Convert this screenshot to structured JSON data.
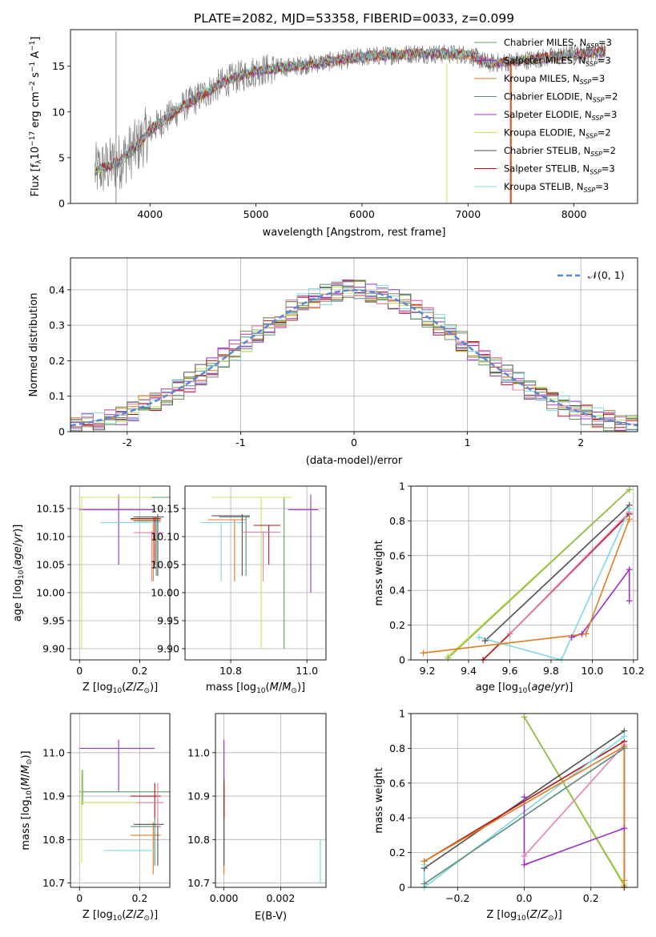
{
  "figure": {
    "title": "PLATE=2082, MJD=53358, FIBERID=0033, z=0.099"
  },
  "colors": {
    "series": [
      "#5f9e5f",
      "#9b30c8",
      "#e07b20",
      "#5f8a7a",
      "#9b30c8",
      "#c8e65a",
      "#505050",
      "#b41414",
      "#7ed8e0"
    ],
    "grid": "#b0b0b0",
    "normal_curve": "#5b86d6",
    "extra_lines": [
      "#e77fb4",
      "#7a8b5a"
    ]
  },
  "chart_data": [
    {
      "id": "spectrum",
      "type": "line",
      "xlabel": "wavelength [Angstrom, rest frame]",
      "ylabel": "Flux [f",
      "ylabel_parts": [
        "Flux [f",
        "λ",
        "10",
        "−17",
        " erg cm",
        "−2",
        " s",
        "−1",
        " A",
        "−1",
        "]"
      ],
      "xlim": [
        3250,
        8600
      ],
      "ylim": [
        0,
        19
      ],
      "xticks": [
        4000,
        5000,
        6000,
        7000,
        8000
      ],
      "yticks": [
        0,
        5,
        10,
        15
      ],
      "grid": false,
      "legend_position": "right",
      "legend": [
        {
          "base": "Chabrier MILES, N",
          "sub": "SSP",
          "tail": "=3",
          "color": "#5f9e5f"
        },
        {
          "base": "Salpeter MILES, N",
          "sub": "SSP",
          "tail": "=3",
          "color": "#9b30c8"
        },
        {
          "base": "Kroupa MILES, N",
          "sub": "SSP",
          "tail": "=3",
          "color": "#e07b20"
        },
        {
          "base": "Chabrier ELODIE, N",
          "sub": "SSP",
          "tail": "=2",
          "color": "#5f8a7a"
        },
        {
          "base": "Salpeter ELODIE, N",
          "sub": "SSP",
          "tail": "=3",
          "color": "#9b30c8"
        },
        {
          "base": "Kroupa ELODIE, N",
          "sub": "SSP",
          "tail": "=2",
          "color": "#c8e65a"
        },
        {
          "base": "Chabrier STELIB, N",
          "sub": "SSP",
          "tail": "=2",
          "color": "#505050"
        },
        {
          "base": "Salpeter STELIB, N",
          "sub": "SSP",
          "tail": "=3",
          "color": "#b41414"
        },
        {
          "base": "Kroupa STELIB, N",
          "sub": "SSP",
          "tail": "=3",
          "color": "#7ed8e0"
        }
      ],
      "continuum_points": [
        [
          3480,
          3.5
        ],
        [
          3700,
          4.5
        ],
        [
          3900,
          6.5
        ],
        [
          4000,
          8.0
        ],
        [
          4300,
          10.5
        ],
        [
          4700,
          13.3
        ],
        [
          5000,
          14.5
        ],
        [
          5500,
          15.2
        ],
        [
          6000,
          16.0
        ],
        [
          6500,
          16.4
        ],
        [
          7000,
          16.3
        ],
        [
          7200,
          15.3
        ],
        [
          7500,
          15.6
        ],
        [
          8000,
          16.3
        ],
        [
          8300,
          16.6
        ]
      ],
      "x_start": 3480,
      "x_end": 8300,
      "spikes": [
        {
          "x": 3680,
          "y": [
            0,
            18.8
          ],
          "color": "#808080"
        },
        {
          "x": 6800,
          "y": [
            0,
            15.3
          ],
          "color": "#c8e65a"
        },
        {
          "x": 7400,
          "y": [
            0,
            15.6
          ],
          "color": "#b41414"
        },
        {
          "x": 7410,
          "y": [
            0,
            15.0
          ],
          "color": "#e07b20"
        }
      ]
    },
    {
      "id": "residuals",
      "type": "area",
      "xlabel": "(data-model)/error",
      "ylabel": "Normed distribution",
      "xlim": [
        -2.5,
        2.5
      ],
      "ylim": [
        0,
        0.49
      ],
      "xticks": [
        -2,
        -1,
        0,
        1,
        2
      ],
      "yticks": [
        0.0,
        0.1,
        0.2,
        0.3,
        0.4
      ],
      "grid": true,
      "legend_position": "top-right",
      "legend": [
        {
          "label": "𝒩(0, 1)",
          "color": "#5b86d6"
        }
      ],
      "bin_width": 0.1
    },
    {
      "id": "age_vs_Z",
      "type": "scatter",
      "xlabel": "Z [log10(Z/Z⊙)]",
      "ylabel": "age  [log10(age/yr)]",
      "xlim": [
        -0.03,
        0.3
      ],
      "ylim": [
        9.88,
        10.19
      ],
      "xticks": [
        0.0,
        0.2
      ],
      "yticks": [
        9.9,
        9.95,
        10.0,
        10.05,
        10.1,
        10.15
      ],
      "ytick_labels": [
        "9.90",
        "9.95",
        "10.00",
        "10.05",
        "10.10",
        "10.15"
      ],
      "grid": true,
      "points": [
        {
          "x": 0.21,
          "y": 10.17,
          "xerr": [
            0.0,
            0.3
          ],
          "yerr": [
            10.17,
            10.17
          ],
          "color": "#5f9e5f"
        },
        {
          "x": 0.13,
          "y": 10.148,
          "xerr": [
            0.0,
            0.25
          ],
          "yerr": [
            10.05,
            10.175
          ],
          "color": "#9b30c8"
        },
        {
          "x": 0.245,
          "y": 10.13,
          "xerr": [
            0.17,
            0.27
          ],
          "yerr": [
            10.02,
            10.135
          ],
          "color": "#e07b20"
        },
        {
          "x": 0.255,
          "y": 10.128,
          "xerr": [
            0.18,
            0.27
          ],
          "yerr": [
            10.03,
            10.135
          ],
          "color": "#5f8a7a"
        },
        {
          "x": 0.15,
          "y": 10.125,
          "xerr": [
            0.07,
            0.27
          ],
          "yerr": [
            10.125,
            10.125
          ],
          "color": "#7ed8e0"
        },
        {
          "x": 0.007,
          "y": 10.17,
          "xerr": [
            0.0,
            0.24
          ],
          "yerr": [
            9.9,
            10.17
          ],
          "color": "#c8e65a"
        },
        {
          "x": 0.26,
          "y": 10.135,
          "xerr": [
            0.18,
            0.28
          ],
          "yerr": [
            10.03,
            10.14
          ],
          "color": "#505050"
        },
        {
          "x": 0.25,
          "y": 10.132,
          "xerr": [
            0.17,
            0.27
          ],
          "yerr": [
            10.05,
            10.135
          ],
          "color": "#b41414"
        },
        {
          "x": 0.24,
          "y": 10.107,
          "xerr": [
            0.18,
            0.28
          ],
          "yerr": [
            10.02,
            10.11
          ],
          "color": "#e77fb4"
        }
      ]
    },
    {
      "id": "age_vs_mass",
      "type": "scatter",
      "xlabel": "mass [log10(M/M⊙)]",
      "ylabel": "",
      "xlim": [
        10.68,
        11.05
      ],
      "ylim": [
        9.88,
        10.19
      ],
      "xticks": [
        10.8,
        11.0
      ],
      "xtick_labels": [
        "10.8",
        "11.0"
      ],
      "yticks": [
        9.9,
        9.95,
        10.0,
        10.05,
        10.1,
        10.15
      ],
      "ytick_labels": [
        "9.90",
        "9.95",
        "10.00",
        "10.05",
        "10.10",
        "10.15"
      ],
      "grid": true,
      "points": [
        {
          "x": 10.94,
          "y": 10.17,
          "xerr": [
            10.88,
            10.96
          ],
          "yerr": [
            9.9,
            10.17
          ],
          "color": "#5f9e5f"
        },
        {
          "x": 11.01,
          "y": 10.148,
          "xerr": [
            10.95,
            11.03
          ],
          "yerr": [
            10.0,
            10.175
          ],
          "color": "#9b30c8"
        },
        {
          "x": 10.81,
          "y": 10.13,
          "xerr": [
            10.74,
            10.84
          ],
          "yerr": [
            10.02,
            10.13
          ],
          "color": "#e07b20"
        },
        {
          "x": 10.84,
          "y": 10.135,
          "xerr": [
            10.77,
            10.85
          ],
          "yerr": [
            10.03,
            10.135
          ],
          "color": "#5f8a7a"
        },
        {
          "x": 10.775,
          "y": 10.125,
          "xerr": [
            10.72,
            10.84
          ],
          "yerr": [
            10.02,
            10.125
          ],
          "color": "#7ed8e0"
        },
        {
          "x": 10.88,
          "y": 10.17,
          "xerr": [
            10.75,
            10.96
          ],
          "yerr": [
            9.9,
            10.17
          ],
          "color": "#c8e65a"
        },
        {
          "x": 10.83,
          "y": 10.137,
          "xerr": [
            10.75,
            10.85
          ],
          "yerr": [
            10.03,
            10.14
          ],
          "color": "#505050"
        },
        {
          "x": 10.9,
          "y": 10.12,
          "xerr": [
            10.86,
            10.93
          ],
          "yerr": [
            10.05,
            10.12
          ],
          "color": "#b41414"
        },
        {
          "x": 10.885,
          "y": 10.108,
          "xerr": [
            10.83,
            10.93
          ],
          "yerr": [
            10.02,
            10.11
          ],
          "color": "#e77fb4"
        }
      ]
    },
    {
      "id": "massweight_vs_age",
      "type": "line",
      "xlabel": "age  [log10(age/yr)]",
      "ylabel": "mass weight",
      "xlim": [
        9.12,
        10.22
      ],
      "ylim": [
        0,
        1.0
      ],
      "xticks": [
        9.2,
        9.4,
        9.6,
        9.8,
        10.0,
        10.2
      ],
      "xtick_labels": [
        "9.2",
        "9.4",
        "9.6",
        "9.8",
        "10.0",
        "10.2"
      ],
      "yticks": [
        0.0,
        0.2,
        0.4,
        0.6,
        0.8,
        1.0
      ],
      "grid": true,
      "series": [
        {
          "color": "#c8e65a",
          "x": [
            9.3,
            10.18
          ],
          "y": [
            0.02,
            0.98
          ]
        },
        {
          "color": "#8fb84a",
          "x": [
            9.3,
            10.18
          ],
          "y": [
            0.01,
            0.98
          ]
        },
        {
          "color": "#505050",
          "x": [
            9.48,
            10.18
          ],
          "y": [
            0.11,
            0.89
          ]
        },
        {
          "color": "#b41414",
          "x": [
            9.47,
            9.6,
            10.18
          ],
          "y": [
            0.0,
            0.15,
            0.84
          ]
        },
        {
          "color": "#e77fb4",
          "x": [
            9.6,
            10.18
          ],
          "y": [
            0.15,
            0.85
          ]
        },
        {
          "color": "#7ed8e0",
          "x": [
            9.45,
            9.85,
            10.18
          ],
          "y": [
            0.13,
            0.0,
            0.87
          ]
        },
        {
          "color": "#9b30c8",
          "x": [
            9.9,
            9.95,
            10.18,
            10.18
          ],
          "y": [
            0.13,
            0.15,
            0.52,
            0.34
          ]
        },
        {
          "color": "#e07b20",
          "x": [
            9.18,
            9.97,
            10.18
          ],
          "y": [
            0.04,
            0.15,
            0.81
          ]
        }
      ]
    },
    {
      "id": "mass_vs_Z",
      "type": "scatter",
      "xlabel": "Z [log10(Z/Z⊙)]",
      "ylabel": "mass [log10(M/M⊙)]",
      "xlim": [
        -0.03,
        0.3
      ],
      "ylim": [
        10.69,
        11.09
      ],
      "xticks": [
        0.0,
        0.2
      ],
      "yticks": [
        10.7,
        10.8,
        10.9,
        11.0
      ],
      "ytick_labels": [
        "10.7",
        "10.8",
        "10.9",
        "11.0"
      ],
      "grid": true,
      "points": [
        {
          "x": 0.01,
          "y": 10.91,
          "xerr": [
            0.0,
            0.3
          ],
          "yerr": [
            10.88,
            10.96
          ],
          "color": "#5f9e5f"
        },
        {
          "x": 0.13,
          "y": 11.01,
          "xerr": [
            0.0,
            0.25
          ],
          "yerr": [
            10.91,
            11.03
          ],
          "color": "#9b30c8"
        },
        {
          "x": 0.245,
          "y": 10.81,
          "xerr": [
            0.17,
            0.27
          ],
          "yerr": [
            10.72,
            10.84
          ],
          "color": "#e07b20"
        },
        {
          "x": 0.25,
          "y": 10.83,
          "xerr": [
            0.17,
            0.27
          ],
          "yerr": [
            10.74,
            10.85
          ],
          "color": "#5f8a7a"
        },
        {
          "x": 0.15,
          "y": 10.775,
          "xerr": [
            0.08,
            0.25
          ],
          "yerr": [
            10.775,
            10.775
          ],
          "color": "#7ed8e0"
        },
        {
          "x": 0.007,
          "y": 10.885,
          "xerr": [
            0.0,
            0.24
          ],
          "yerr": [
            10.745,
            10.96
          ],
          "color": "#c8e65a"
        },
        {
          "x": 0.26,
          "y": 10.835,
          "xerr": [
            0.18,
            0.28
          ],
          "yerr": [
            10.74,
            10.85
          ],
          "color": "#505050"
        },
        {
          "x": 0.25,
          "y": 10.9,
          "xerr": [
            0.17,
            0.27
          ],
          "yerr": [
            10.85,
            10.93
          ],
          "color": "#b41414"
        },
        {
          "x": 0.26,
          "y": 10.885,
          "xerr": [
            0.19,
            0.28
          ],
          "yerr": [
            10.83,
            10.93
          ],
          "color": "#e77fb4"
        }
      ]
    },
    {
      "id": "mass_vs_ebv",
      "type": "scatter",
      "xlabel": "E(B-V)",
      "ylabel": "",
      "xlim": [
        -0.0003,
        0.0036
      ],
      "ylim": [
        10.69,
        11.09
      ],
      "xticks": [
        0.0,
        0.002
      ],
      "xtick_labels": [
        "0.000",
        "0.002"
      ],
      "yticks": [
        10.7,
        10.8,
        10.9,
        11.0
      ],
      "ytick_labels": [
        "10.7",
        "10.8",
        "10.9",
        "11.0"
      ],
      "grid": true,
      "points": [
        {
          "x": 0.0,
          "y": 11.01,
          "xerr": [
            0.0,
            0.0
          ],
          "yerr": [
            10.93,
            11.03
          ],
          "color": "#9b30c8"
        },
        {
          "x": 0.0,
          "y": 10.87,
          "xerr": [
            0.0,
            0.0
          ],
          "yerr": [
            10.72,
            10.93
          ],
          "color": "#e07b20"
        },
        {
          "x": 0.0,
          "y": 10.85,
          "xerr": [
            0.0,
            0.0
          ],
          "yerr": [
            10.74,
            10.94
          ],
          "color": "#505050"
        },
        {
          "x": 0.0,
          "y": 10.91,
          "xerr": [
            0.0,
            0.0
          ],
          "yerr": [
            10.85,
            10.93
          ],
          "color": "#b41414"
        },
        {
          "x": 0.0034,
          "y": 10.75,
          "xerr": [
            0.0034,
            0.0034
          ],
          "yerr": [
            10.7,
            10.8
          ],
          "color": "#7ed8e0"
        }
      ]
    },
    {
      "id": "massweight_vs_Z",
      "type": "line",
      "xlabel": "Z [log10(Z/Z⊙)]",
      "ylabel": "mass weight",
      "xlim": [
        -0.34,
        0.34
      ],
      "ylim": [
        0,
        1.0
      ],
      "xticks": [
        -0.2,
        0.0,
        0.2
      ],
      "xtick_labels": [
        "−0.2",
        "0.0",
        "0.2"
      ],
      "yticks": [
        0.0,
        0.2,
        0.4,
        0.6,
        0.8,
        1.0
      ],
      "grid": true,
      "series": [
        {
          "color": "#c8e65a",
          "x": [
            0.0,
            0.3
          ],
          "y": [
            0.98,
            0.02
          ]
        },
        {
          "color": "#8fb84a",
          "x": [
            0.0,
            0.3
          ],
          "y": [
            0.98,
            0.01
          ]
        },
        {
          "color": "#505050",
          "x": [
            -0.3,
            0.3
          ],
          "y": [
            0.11,
            0.9
          ]
        },
        {
          "color": "#b41414",
          "x": [
            -0.3,
            0.3,
            0.3
          ],
          "y": [
            0.15,
            0.84,
            0.0
          ]
        },
        {
          "color": "#e77fb4",
          "x": [
            0.0,
            0.3
          ],
          "y": [
            0.18,
            0.82
          ]
        },
        {
          "color": "#7ed8e0",
          "x": [
            -0.3,
            -0.3,
            0.3
          ],
          "y": [
            0.13,
            0.0,
            0.87
          ]
        },
        {
          "color": "#9b30c8",
          "x": [
            0.0,
            0.0,
            0.3
          ],
          "y": [
            0.52,
            0.13,
            0.34
          ]
        },
        {
          "color": "#e07b20",
          "x": [
            -0.3,
            0.3,
            0.3
          ],
          "y": [
            0.15,
            0.81,
            0.04
          ]
        },
        {
          "color": "#5f8a7a",
          "x": [
            -0.3,
            0.3
          ],
          "y": [
            0.02,
            0.8
          ]
        }
      ]
    }
  ]
}
